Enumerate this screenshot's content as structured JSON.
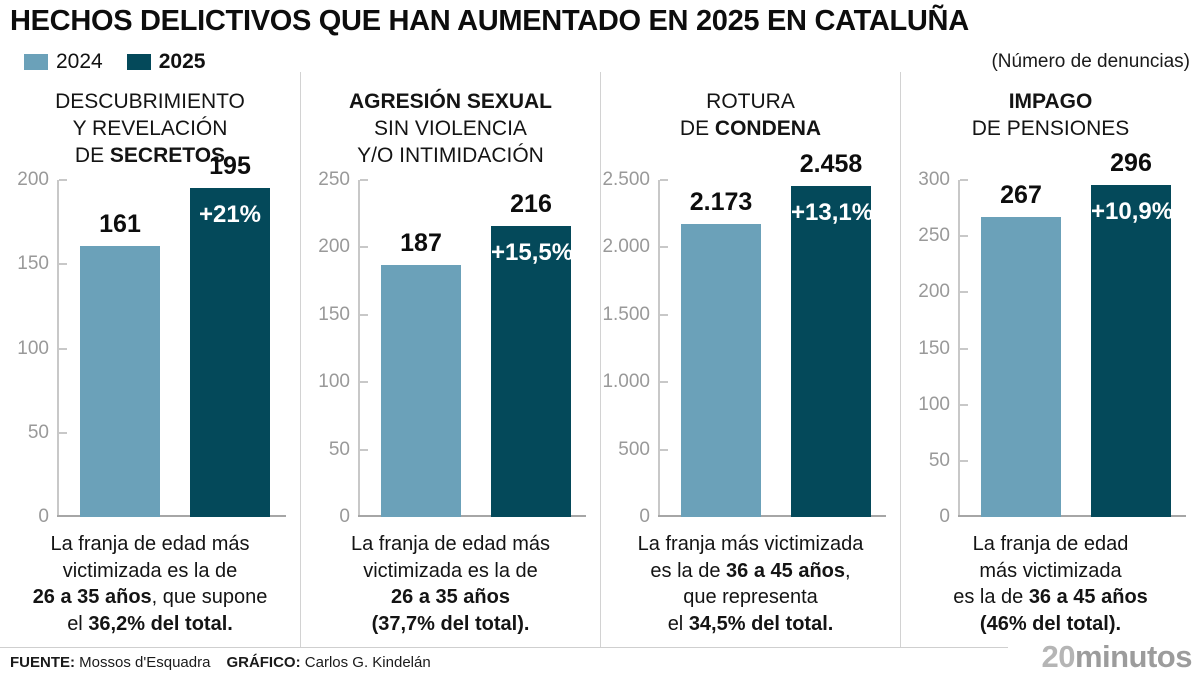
{
  "header": {
    "title": "HECHOS DELICTIVOS QUE HAN AUMENTADO EN 2025 EN CATALUÑA",
    "legend": [
      {
        "label": "2024",
        "bold": false
      },
      {
        "label": "2025",
        "bold": true
      }
    ],
    "units_note": "(Número de denuncias)"
  },
  "colors": {
    "bar_2024": "#6ba1b9",
    "bar_2025": "#04495a",
    "axis": "#c8c8c8",
    "tick_label": "#999999"
  },
  "panels": [
    {
      "title_lines": [
        [
          {
            "t": "DESCUBRIMIENTO",
            "b": false
          }
        ],
        [
          {
            "t": "Y REVELACIÓN",
            "b": false
          }
        ],
        [
          {
            "t": "DE ",
            "b": false
          },
          {
            "t": "SECRETOS",
            "b": true
          }
        ]
      ],
      "axis": {
        "max": 200,
        "ticks": [
          {
            "v": 200,
            "label": "200"
          },
          {
            "v": 150,
            "label": "150"
          },
          {
            "v": 100,
            "label": "100"
          },
          {
            "v": 50,
            "label": "50"
          },
          {
            "v": 0,
            "label": "0"
          }
        ]
      },
      "bars": {
        "y2024": {
          "value": 161,
          "label": "161"
        },
        "y2025": {
          "value": 195,
          "label": "195",
          "pct": "+21%"
        }
      },
      "note_lines": [
        [
          {
            "t": "La franja de edad más",
            "b": false
          }
        ],
        [
          {
            "t": "victimizada es la de",
            "b": false
          }
        ],
        [
          {
            "t": "26 a 35 años",
            "b": true
          },
          {
            "t": ", que supone",
            "b": false
          }
        ],
        [
          {
            "t": "el ",
            "b": false
          },
          {
            "t": "36,2% del total.",
            "b": true
          }
        ]
      ]
    },
    {
      "title_lines": [
        [
          {
            "t": "AGRESIÓN SEXUAL",
            "b": true
          }
        ],
        [
          {
            "t": "SIN VIOLENCIA",
            "b": false
          }
        ],
        [
          {
            "t": "Y/O INTIMIDACIÓN",
            "b": false
          }
        ]
      ],
      "axis": {
        "max": 250,
        "ticks": [
          {
            "v": 250,
            "label": "250"
          },
          {
            "v": 200,
            "label": "200"
          },
          {
            "v": 150,
            "label": "150"
          },
          {
            "v": 100,
            "label": "100"
          },
          {
            "v": 50,
            "label": "50"
          },
          {
            "v": 0,
            "label": "0"
          }
        ]
      },
      "bars": {
        "y2024": {
          "value": 187,
          "label": "187"
        },
        "y2025": {
          "value": 216,
          "label": "216",
          "pct": "+15,5%"
        }
      },
      "note_lines": [
        [
          {
            "t": "La franja de edad más",
            "b": false
          }
        ],
        [
          {
            "t": "victimizada es la de",
            "b": false
          }
        ],
        [
          {
            "t": "26 a 35 años",
            "b": true
          }
        ],
        [
          {
            "t": "(37,7% del total).",
            "b": true
          }
        ]
      ]
    },
    {
      "title_lines": [
        [
          {
            "t": "ROTURA",
            "b": false
          }
        ],
        [
          {
            "t": "DE ",
            "b": false
          },
          {
            "t": "CONDENA",
            "b": true
          }
        ]
      ],
      "axis": {
        "max": 2500,
        "ticks": [
          {
            "v": 2500,
            "label": "2.500"
          },
          {
            "v": 2000,
            "label": "2.000"
          },
          {
            "v": 1500,
            "label": "1.500"
          },
          {
            "v": 1000,
            "label": "1.000"
          },
          {
            "v": 500,
            "label": "500"
          },
          {
            "v": 0,
            "label": "0"
          }
        ]
      },
      "bars": {
        "y2024": {
          "value": 2173,
          "label": "2.173"
        },
        "y2025": {
          "value": 2458,
          "label": "2.458",
          "pct": "+13,1%"
        }
      },
      "note_lines": [
        [
          {
            "t": "La franja más victimizada",
            "b": false
          }
        ],
        [
          {
            "t": "es la de ",
            "b": false
          },
          {
            "t": "36 a 45 años",
            "b": true
          },
          {
            "t": ",",
            "b": false
          }
        ],
        [
          {
            "t": "que representa",
            "b": false
          }
        ],
        [
          {
            "t": "el ",
            "b": false
          },
          {
            "t": "34,5% del total.",
            "b": true
          }
        ]
      ]
    },
    {
      "title_lines": [
        [
          {
            "t": "IMPAGO",
            "b": true
          }
        ],
        [
          {
            "t": "DE PENSIONES",
            "b": false
          }
        ]
      ],
      "axis": {
        "max": 300,
        "ticks": [
          {
            "v": 300,
            "label": "300"
          },
          {
            "v": 250,
            "label": "250"
          },
          {
            "v": 200,
            "label": "200"
          },
          {
            "v": 150,
            "label": "150"
          },
          {
            "v": 100,
            "label": "100"
          },
          {
            "v": 50,
            "label": "50"
          },
          {
            "v": 0,
            "label": "0"
          }
        ]
      },
      "bars": {
        "y2024": {
          "value": 267,
          "label": "267"
        },
        "y2025": {
          "value": 296,
          "label": "296",
          "pct": "+10,9%"
        }
      },
      "note_lines": [
        [
          {
            "t": "La franja de edad",
            "b": false
          }
        ],
        [
          {
            "t": "más victimizada",
            "b": false
          }
        ],
        [
          {
            "t": "es la de ",
            "b": false
          },
          {
            "t": "36 a 45 años",
            "b": true
          }
        ],
        [
          {
            "t": "(46% del total).",
            "b": true
          }
        ]
      ]
    }
  ],
  "footer": {
    "source_label": "FUENTE:",
    "source": "Mossos d'Esquadra",
    "credit_label": "GRÁFICO:",
    "credit": "Carlos G. Kindelán",
    "logo_part1": "20",
    "logo_part2": "minutos"
  },
  "chart_data": [
    {
      "type": "bar",
      "title": "Descubrimiento y revelación de secretos",
      "categories": [
        "2024",
        "2025"
      ],
      "values": [
        161,
        195
      ],
      "pct_change": "+21%",
      "ylim": [
        0,
        200
      ],
      "ylabel": "Número de denuncias",
      "annotation": "La franja de edad más victimizada es la de 26 a 35 años, que supone el 36,2% del total.",
      "grid": false,
      "legend_position": "top-left"
    },
    {
      "type": "bar",
      "title": "Agresión sexual sin violencia y/o intimidación",
      "categories": [
        "2024",
        "2025"
      ],
      "values": [
        187,
        216
      ],
      "pct_change": "+15,5%",
      "ylim": [
        0,
        250
      ],
      "ylabel": "Número de denuncias",
      "annotation": "La franja de edad más victimizada es la de 26 a 35 años (37,7% del total).",
      "grid": false,
      "legend_position": "top-left"
    },
    {
      "type": "bar",
      "title": "Rotura de condena",
      "categories": [
        "2024",
        "2025"
      ],
      "values": [
        2173,
        2458
      ],
      "pct_change": "+13,1%",
      "ylim": [
        0,
        2500
      ],
      "ylabel": "Número de denuncias",
      "annotation": "La franja más victimizada es la de 36 a 45 años, que representa el 34,5% del total.",
      "grid": false,
      "legend_position": "top-left"
    },
    {
      "type": "bar",
      "title": "Impago de pensiones",
      "categories": [
        "2024",
        "2025"
      ],
      "values": [
        267,
        296
      ],
      "pct_change": "+10,9%",
      "ylim": [
        0,
        300
      ],
      "ylabel": "Número de denuncias",
      "annotation": "La franja de edad más victimizada es la de 36 a 45 años (46% del total).",
      "grid": false,
      "legend_position": "top-left"
    }
  ]
}
